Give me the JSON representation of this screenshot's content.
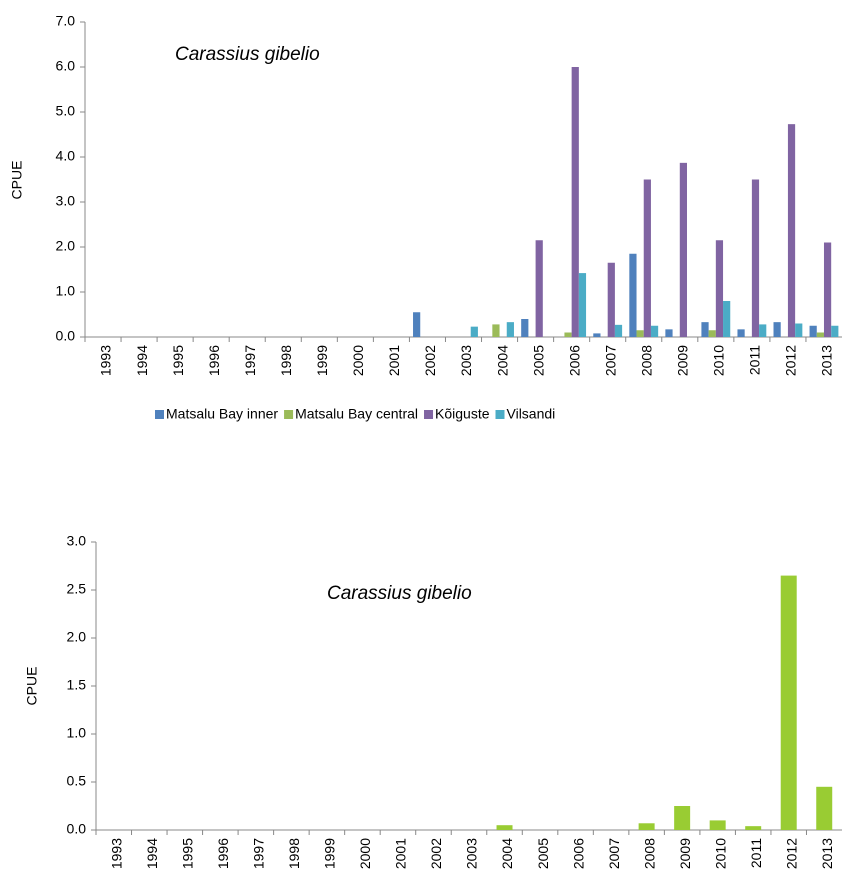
{
  "chart_data": [
    {
      "type": "bar",
      "title": "Carassius gibelio",
      "y_label": "CPUE",
      "categories": [
        "1993",
        "1994",
        "1995",
        "1996",
        "1997",
        "1998",
        "1999",
        "2000",
        "2001",
        "2002",
        "2003",
        "2004",
        "2005",
        "2006",
        "2007",
        "2008",
        "2009",
        "2010",
        "2011",
        "2012",
        "2013"
      ],
      "series": [
        {
          "name": "Matsalu Bay inner",
          "color": "#4f81bd",
          "values": [
            0,
            0,
            0,
            0,
            0,
            0,
            0,
            0,
            0,
            0.55,
            0,
            0,
            0.4,
            0,
            0.08,
            1.85,
            0.17,
            0.33,
            0.17,
            0.33,
            0.25
          ]
        },
        {
          "name": "Matsalu Bay central",
          "color": "#9bbb59",
          "values": [
            0,
            0,
            0,
            0,
            0,
            0,
            0,
            0,
            0,
            0,
            0,
            0.28,
            0,
            0.1,
            0,
            0.15,
            0,
            0.15,
            0,
            0,
            0.1
          ]
        },
        {
          "name": "Kõiguste",
          "color": "#8064a2",
          "values": [
            0,
            0,
            0,
            0,
            0,
            0,
            0,
            0,
            0,
            0,
            0,
            0,
            2.15,
            6.0,
            1.65,
            3.5,
            3.87,
            2.15,
            3.5,
            4.73,
            2.1
          ]
        },
        {
          "name": "Vilsandi",
          "color": "#4bacc6",
          "values": [
            0,
            0,
            0,
            0,
            0,
            0,
            0,
            0,
            0,
            0,
            0.23,
            0.33,
            0,
            1.42,
            0.27,
            0.25,
            0,
            0.8,
            0.28,
            0.3,
            0.25
          ]
        }
      ],
      "ylim": [
        0,
        7
      ],
      "yticks": [
        {
          "value": 0,
          "label": "0.0"
        },
        {
          "value": 1,
          "label": "1.0"
        },
        {
          "value": 2,
          "label": "2.0"
        },
        {
          "value": 3,
          "label": "3.0"
        },
        {
          "value": 4,
          "label": "4.0"
        },
        {
          "value": 5,
          "label": "5.0"
        },
        {
          "value": 6,
          "label": "6.0"
        },
        {
          "value": 7,
          "label": "7.0"
        }
      ],
      "legend": "bottom"
    },
    {
      "type": "bar",
      "title": "Carassius gibelio",
      "y_label": "CPUE",
      "categories": [
        "1993",
        "1994",
        "1995",
        "1996",
        "1997",
        "1998",
        "1999",
        "2000",
        "2001",
        "2002",
        "2003",
        "2004",
        "2005",
        "2006",
        "2007",
        "2008",
        "2009",
        "2010",
        "2011",
        "2012",
        "2013"
      ],
      "values": [
        0,
        0,
        0,
        0,
        0,
        0,
        0,
        0,
        0,
        0,
        0,
        0.05,
        0,
        0,
        0,
        0.07,
        0.25,
        0.1,
        0.04,
        2.65,
        0.45
      ],
      "color": "#99cc33",
      "ylim": [
        0,
        3
      ],
      "yticks": [
        {
          "value": 0,
          "label": "0.0"
        },
        {
          "value": 0.5,
          "label": "0.5"
        },
        {
          "value": 1,
          "label": "1.0"
        },
        {
          "value": 1.5,
          "label": "1.5"
        },
        {
          "value": 2,
          "label": "2.0"
        },
        {
          "value": 2.5,
          "label": "2.5"
        },
        {
          "value": 3,
          "label": "3.0"
        }
      ]
    }
  ]
}
